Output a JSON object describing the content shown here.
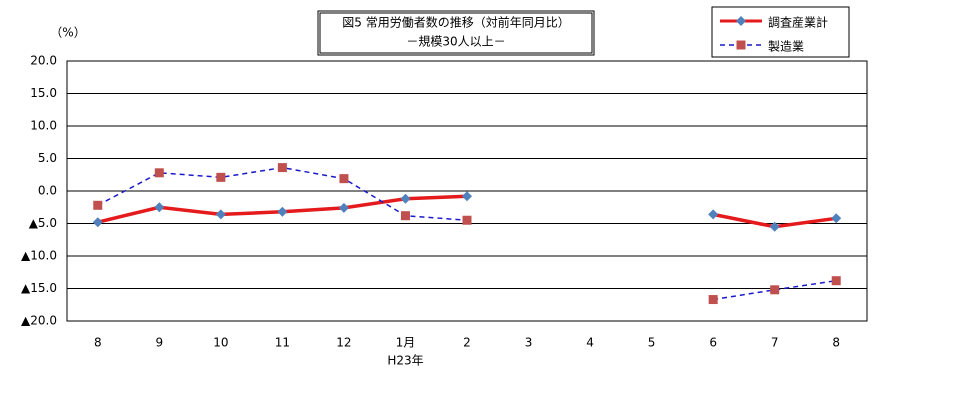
{
  "chart_data": {
    "type": "line",
    "title": "図5 常用労働者数の推移（対前年同月比）",
    "subtitle": "－規模30人以上－",
    "y_label": "（%）",
    "annotation": "H23年",
    "categories": [
      "8",
      "9",
      "10",
      "11",
      "12",
      "1月",
      "2",
      "3",
      "4",
      "5",
      "6",
      "7",
      "8"
    ],
    "series": [
      {
        "name": "調査産業計",
        "color": "#e41a1c",
        "marker_color": "#4f81bd",
        "marker": "diamond",
        "dash": false,
        "values": [
          -4.8,
          -2.5,
          -3.6,
          -3.2,
          -2.6,
          -1.2,
          -0.8,
          null,
          null,
          null,
          -3.6,
          -5.5,
          -4.2
        ]
      },
      {
        "name": "製造業",
        "color": "#1a1acc",
        "marker_color": "#c0504d",
        "marker": "square",
        "dash": true,
        "values": [
          -2.2,
          2.8,
          2.1,
          3.6,
          1.9,
          -3.8,
          -4.5,
          null,
          null,
          null,
          -16.7,
          -15.2,
          -13.8
        ]
      }
    ],
    "ylim": [
      -20,
      20
    ],
    "yticks": [
      {
        "value": 20,
        "label": "20.0"
      },
      {
        "value": 15,
        "label": "15.0"
      },
      {
        "value": 10,
        "label": "10.0"
      },
      {
        "value": 5,
        "label": "5.0"
      },
      {
        "value": 0,
        "label": "0.0"
      },
      {
        "value": -5,
        "label": "▲5.0"
      },
      {
        "value": -10,
        "label": "▲10.0"
      },
      {
        "value": -15,
        "label": "▲15.0"
      },
      {
        "value": -20,
        "label": "▲20.0"
      }
    ],
    "grid": true,
    "legend": "top-right"
  }
}
